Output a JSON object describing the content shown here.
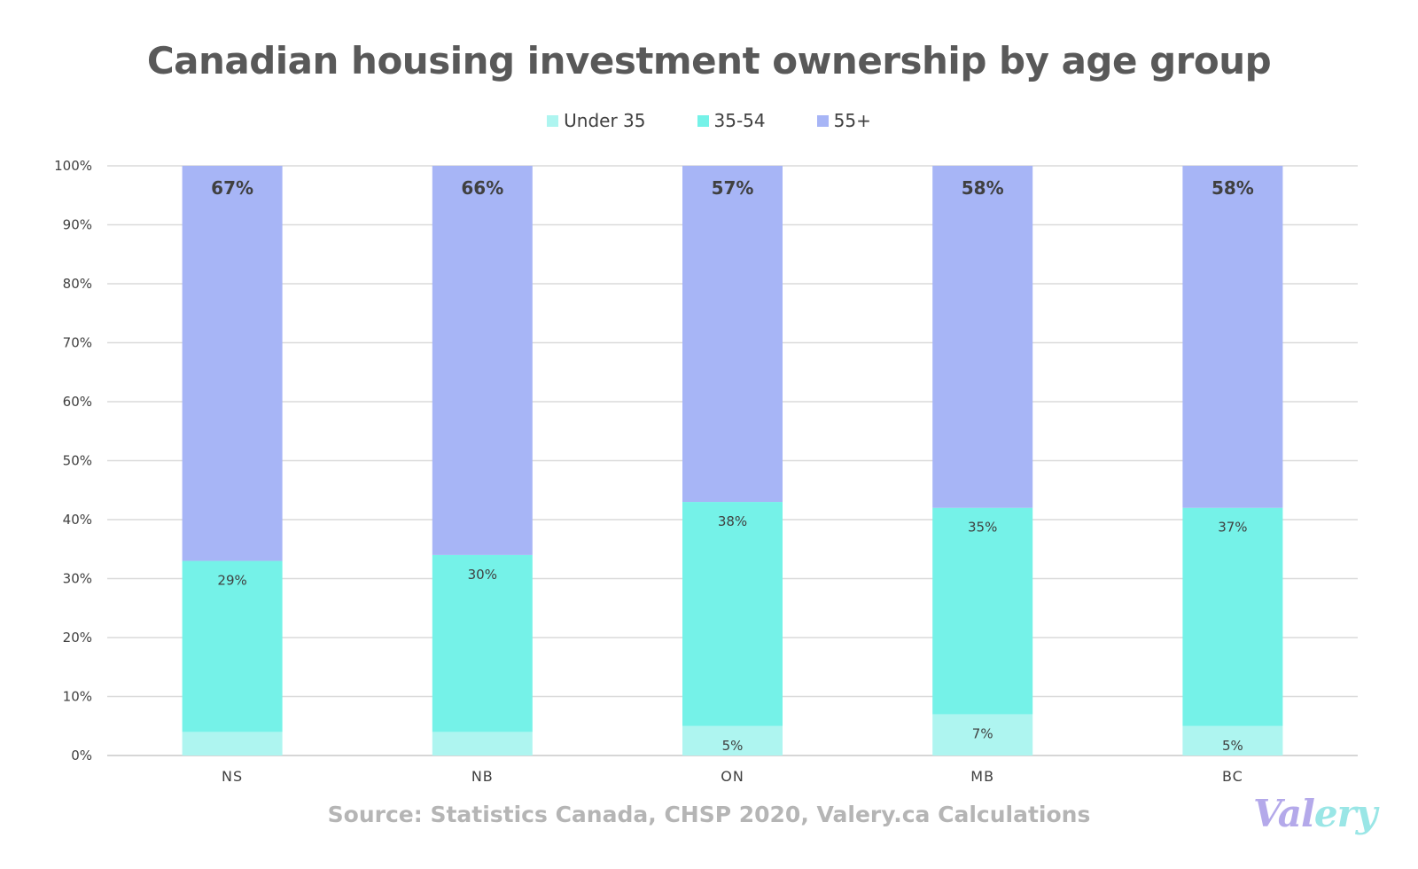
{
  "title": "Canadian housing investment ownership by age group",
  "source": "Source: Statistics Canada, CHSP 2020, Valery.ca Calculations",
  "logo": {
    "part1": "Val",
    "part2": "ery"
  },
  "chart_data": {
    "type": "bar",
    "stacked": true,
    "title": "Canadian housing investment ownership by age group",
    "xlabel": "",
    "ylabel": "",
    "ylim": [
      0,
      100
    ],
    "yticks": [
      "0%",
      "10%",
      "20%",
      "30%",
      "40%",
      "50%",
      "60%",
      "70%",
      "80%",
      "90%",
      "100%"
    ],
    "grid": true,
    "legend_position": "top",
    "categories": [
      "NS",
      "NB",
      "ON",
      "MB",
      "BC"
    ],
    "series": [
      {
        "name": "Under 35",
        "color": "#aef5f0",
        "values": [
          4,
          4,
          5,
          7,
          5
        ],
        "labels": [
          "",
          "",
          "5%",
          "7%",
          "5%"
        ]
      },
      {
        "name": "35-54",
        "color": "#75f2e8",
        "values": [
          29,
          30,
          38,
          35,
          37
        ],
        "labels": [
          "29%",
          "30%",
          "38%",
          "35%",
          "37%"
        ]
      },
      {
        "name": "55+",
        "color": "#a7b5f6",
        "values": [
          67,
          66,
          57,
          58,
          58
        ],
        "labels": [
          "67%",
          "66%",
          "57%",
          "58%",
          "58%"
        ]
      }
    ]
  }
}
